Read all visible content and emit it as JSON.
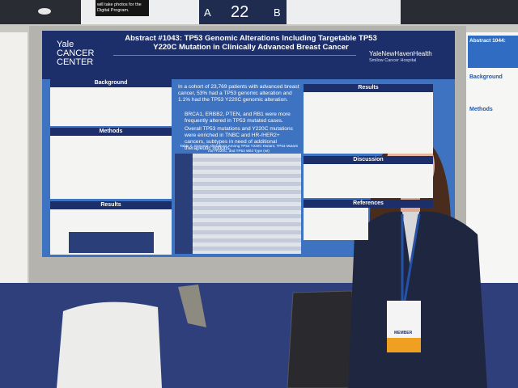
{
  "sign": {
    "note": "will take photos for the Digital Program.",
    "left_letter": "A",
    "number": "22",
    "right_letter": "B"
  },
  "poster": {
    "title": "Abstract #1043: TP53 Genomic Alterations Including Targetable TP53 Y220C Mutation in Clinically Advanced Breast Cancer",
    "left_logo": "Yale CANCER CENTER",
    "right_logo": "YaleNewHavenHealth",
    "right_logo_sub": "Smilow Cancer Hospital",
    "left_sections": [
      "Background",
      "Methods",
      "Results"
    ],
    "key_findings": [
      "In a cohort of 23,769 patients with advanced breast cancer, 53% had a TP53 genomic alteration and 1.1% had the TP53 Y220C genomic alteration.",
      "BRCA1, ERBB2, PTEN, and RB1 were more frequently altered in TP53 mutated cases.",
      "Overall TP53 mutations and Y220C mutations were enriched in TNBC and HR-/HER2+ cancers, subtypes in need of additional therapeutic options."
    ],
    "table_caption": "Table 2: Genomic Alterations Among TP53 Y220C Mutant, TP53 Mutant non-Y220C, and TP53 Wild Type (wt)",
    "right_sections": [
      "Results",
      "Discussion",
      "References"
    ]
  },
  "right_poster": {
    "title": "Abstract 1044:",
    "sections": [
      "Background",
      "Methods"
    ]
  },
  "badge": {
    "label": "MEMBER"
  }
}
